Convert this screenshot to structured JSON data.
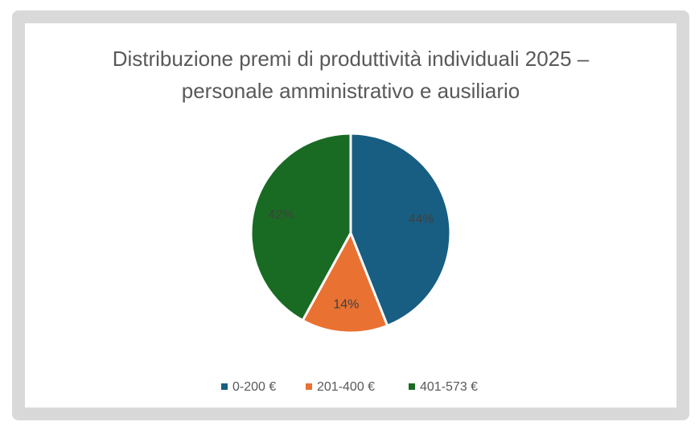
{
  "chart_data": {
    "type": "pie",
    "title": "Distribuzione premi di produttività individuali 2025 – personale amministrativo e ausiliario",
    "categories": [
      "0-200 €",
      "201-400 €",
      "401-573 €"
    ],
    "values": [
      44,
      14,
      42
    ],
    "value_labels": [
      "44%",
      "14%",
      "42%"
    ],
    "colors": [
      "#175e82",
      "#e97132",
      "#196b24"
    ],
    "legend": "bottom"
  }
}
